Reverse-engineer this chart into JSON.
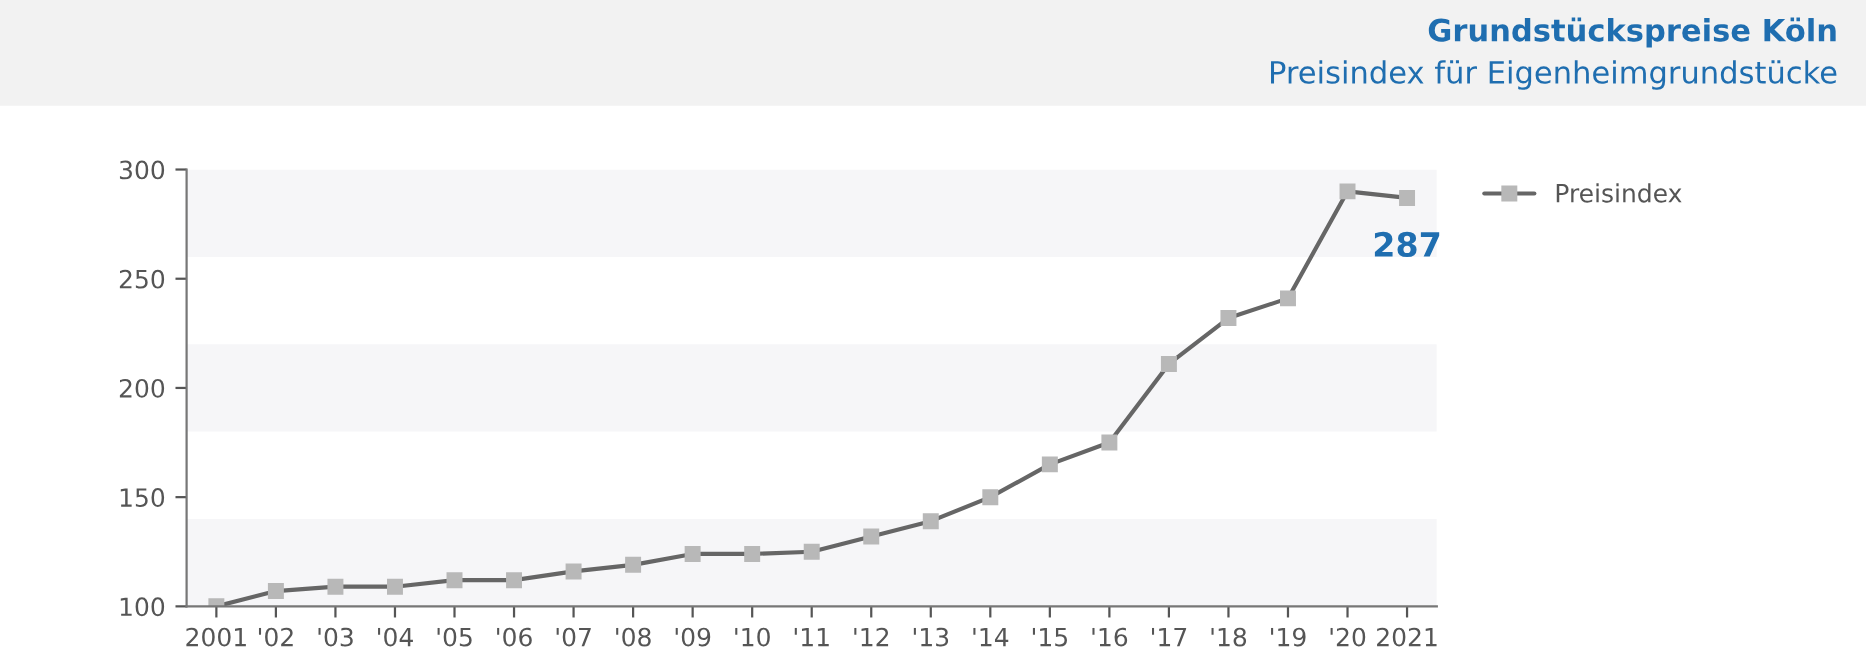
{
  "chart_data": {
    "type": "line",
    "title": "Grundstückspreise Köln",
    "subtitle": "Preisindex für Eigenheimgrundstücke",
    "categories": [
      "2001",
      "'02",
      "'03",
      "'04",
      "'05",
      "'06",
      "'07",
      "'08",
      "'09",
      "'10",
      "'11",
      "'12",
      "'13",
      "'14",
      "'15",
      "'16",
      "'17",
      "'18",
      "'19",
      "'20",
      "2021"
    ],
    "series": [
      {
        "name": "Preisindex",
        "color": "#666666",
        "values": [
          100,
          107,
          109,
          109,
          112,
          112,
          116,
          119,
          124,
          124,
          125,
          132,
          139,
          150,
          165,
          175,
          211,
          232,
          241,
          290,
          287
        ],
        "value_labels": [
          null,
          null,
          null,
          null,
          null,
          null,
          null,
          null,
          null,
          null,
          null,
          null,
          null,
          null,
          null,
          null,
          null,
          null,
          null,
          null,
          "287"
        ]
      }
    ],
    "ylim": [
      100,
      300
    ],
    "yticks": [
      100,
      150,
      200,
      250,
      300
    ],
    "bands": [
      {
        "axis": "y",
        "from": 100,
        "to": 140,
        "color": "#f6f6f8"
      },
      {
        "axis": "y",
        "from": 180,
        "to": 220,
        "color": "#f6f6f8"
      },
      {
        "axis": "y",
        "from": 260,
        "to": 300,
        "color": "#f6f6f8"
      }
    ],
    "grid": false,
    "legend": "right",
    "marker": "square",
    "line_style": "solid"
  }
}
